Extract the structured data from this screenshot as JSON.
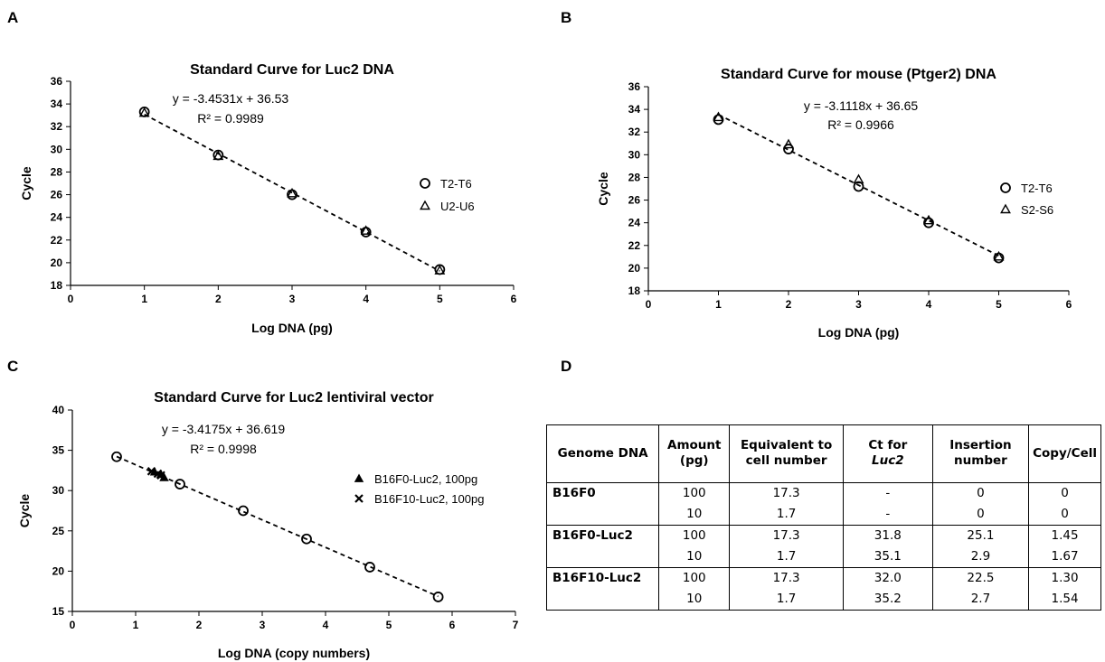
{
  "panels": {
    "a": "A",
    "b": "B",
    "c": "C",
    "d": "D"
  },
  "chart_data": [
    {
      "id": "A",
      "type": "scatter",
      "title": "Standard Curve for Luc2 DNA",
      "xlabel": "Log DNA (pg)",
      "ylabel": "Cycle",
      "xlim": [
        0,
        6
      ],
      "ylim": [
        18,
        36
      ],
      "xticks": [
        0,
        1,
        2,
        3,
        4,
        5,
        6
      ],
      "yticks": [
        18,
        20,
        22,
        24,
        26,
        28,
        30,
        32,
        34,
        36
      ],
      "equation": "y = -3.4531x + 36.53",
      "r2": "R² = 0.9989",
      "trendline": {
        "slope": -3.4531,
        "intercept": 36.53,
        "x_range": [
          1,
          5
        ]
      },
      "legend_position": "right",
      "series": [
        {
          "name": "T2-T6",
          "marker": "circle",
          "x": [
            1,
            2,
            3,
            4,
            5
          ],
          "y": [
            33.3,
            29.5,
            26.0,
            22.7,
            19.4
          ]
        },
        {
          "name": "U2-U6",
          "marker": "triangle",
          "x": [
            1,
            2,
            3,
            4,
            5
          ],
          "y": [
            33.2,
            29.4,
            26.1,
            22.8,
            19.3
          ]
        }
      ]
    },
    {
      "id": "B",
      "type": "scatter",
      "title": "Standard Curve for mouse (Ptger2) DNA",
      "xlabel": "Log DNA (pg)",
      "ylabel": "Cycle",
      "xlim": [
        0,
        6
      ],
      "ylim": [
        18,
        36
      ],
      "xticks": [
        0,
        1,
        2,
        3,
        4,
        5,
        6
      ],
      "yticks": [
        18,
        20,
        22,
        24,
        26,
        28,
        30,
        32,
        34,
        36
      ],
      "equation": "y = -3.1118x + 36.65",
      "r2": "R² = 0.9966",
      "trendline": {
        "slope": -3.1118,
        "intercept": 36.65,
        "x_range": [
          1,
          5
        ]
      },
      "legend_position": "right",
      "series": [
        {
          "name": "T2-T6",
          "marker": "circle",
          "x": [
            1,
            2,
            3,
            4,
            5
          ],
          "y": [
            33.1,
            30.5,
            27.2,
            24.0,
            20.9
          ]
        },
        {
          "name": "S2-S6",
          "marker": "triangle",
          "x": [
            1,
            2,
            3,
            4,
            5
          ],
          "y": [
            33.3,
            30.9,
            27.8,
            24.2,
            21.0
          ]
        }
      ]
    },
    {
      "id": "C",
      "type": "scatter",
      "title": "Standard Curve for Luc2 lentiviral vector",
      "xlabel": "Log DNA (copy numbers)",
      "ylabel": "Cycle",
      "xlim": [
        0,
        7
      ],
      "ylim": [
        15,
        40
      ],
      "xticks": [
        0,
        1,
        2,
        3,
        4,
        5,
        6,
        7
      ],
      "yticks": [
        15,
        20,
        25,
        30,
        35,
        40
      ],
      "equation": "y = -3.4175x + 36.619",
      "r2": "R² = 0.9998",
      "trendline": {
        "slope": -3.4175,
        "intercept": 36.619,
        "x_range": [
          0.7,
          5.78
        ]
      },
      "legend_position": "right",
      "standards": {
        "x": [
          0.7,
          1.7,
          2.7,
          3.7,
          4.7,
          5.78
        ],
        "y": [
          34.2,
          30.8,
          27.5,
          24.0,
          20.5,
          16.8
        ]
      },
      "series": [
        {
          "name": "B16F0-Luc2, 100pg",
          "marker": "filled-triangle",
          "x": [
            1.3,
            1.4,
            1.45
          ],
          "y": [
            32.3,
            32.0,
            31.6
          ]
        },
        {
          "name": "B16F10-Luc2, 100pg",
          "marker": "x",
          "x": [
            1.25,
            1.35,
            1.4
          ],
          "y": [
            32.4,
            32.1,
            31.9
          ]
        }
      ]
    }
  ],
  "table": {
    "headers": {
      "genome": "Genome DNA",
      "amount_1": "Amount",
      "amount_2": "(pg)",
      "equiv_1": "Equivalent to",
      "equiv_2": "cell number",
      "ct_1": "Ct for",
      "ct_2": "Luc2",
      "ins_1": "Insertion",
      "ins_2": "number",
      "copy": "Copy/Cell"
    },
    "rows": [
      {
        "genome": "B16F0",
        "amount": "100",
        "equiv": "17.3",
        "ct": "-",
        "ins": "0",
        "copy": "0"
      },
      {
        "genome": "",
        "amount": "10",
        "equiv": "1.7",
        "ct": "-",
        "ins": "0",
        "copy": "0"
      },
      {
        "genome": "B16F0-Luc2",
        "amount": "100",
        "equiv": "17.3",
        "ct": "31.8",
        "ins": "25.1",
        "copy": "1.45"
      },
      {
        "genome": "",
        "amount": "10",
        "equiv": "1.7",
        "ct": "35.1",
        "ins": "2.9",
        "copy": "1.67"
      },
      {
        "genome": "B16F10-Luc2",
        "amount": "100",
        "equiv": "17.3",
        "ct": "32.0",
        "ins": "22.5",
        "copy": "1.30"
      },
      {
        "genome": "",
        "amount": "10",
        "equiv": "1.7",
        "ct": "35.2",
        "ins": "2.7",
        "copy": "1.54"
      }
    ]
  }
}
